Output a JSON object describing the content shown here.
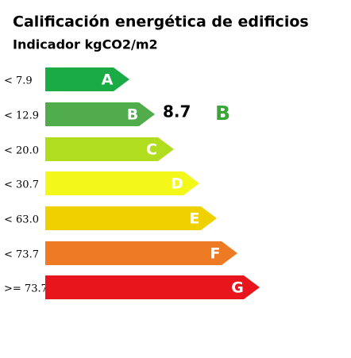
{
  "title": "Calificación energética de edificios",
  "subtitle": "Indicador kgCO2/m2",
  "rows": [
    {
      "range": "< 7.9",
      "letter": "A",
      "color": "#1aaa46"
    },
    {
      "range": "< 12.9",
      "letter": "B",
      "color": "#51ad4b"
    },
    {
      "range": "< 20.0",
      "letter": "C",
      "color": "#b0de1e"
    },
    {
      "range": "< 30.7",
      "letter": "D",
      "color": "#f3f81a"
    },
    {
      "range": "< 63.0",
      "letter": "E",
      "color": "#efd100"
    },
    {
      "range": "< 73.7",
      "letter": "F",
      "color": "#ee7a24"
    },
    {
      "range": ">= 73.7",
      "letter": "G",
      "color": "#e8161c"
    }
  ],
  "result": {
    "value": "8.7",
    "letter": "B",
    "color": "#3aa63a"
  }
}
